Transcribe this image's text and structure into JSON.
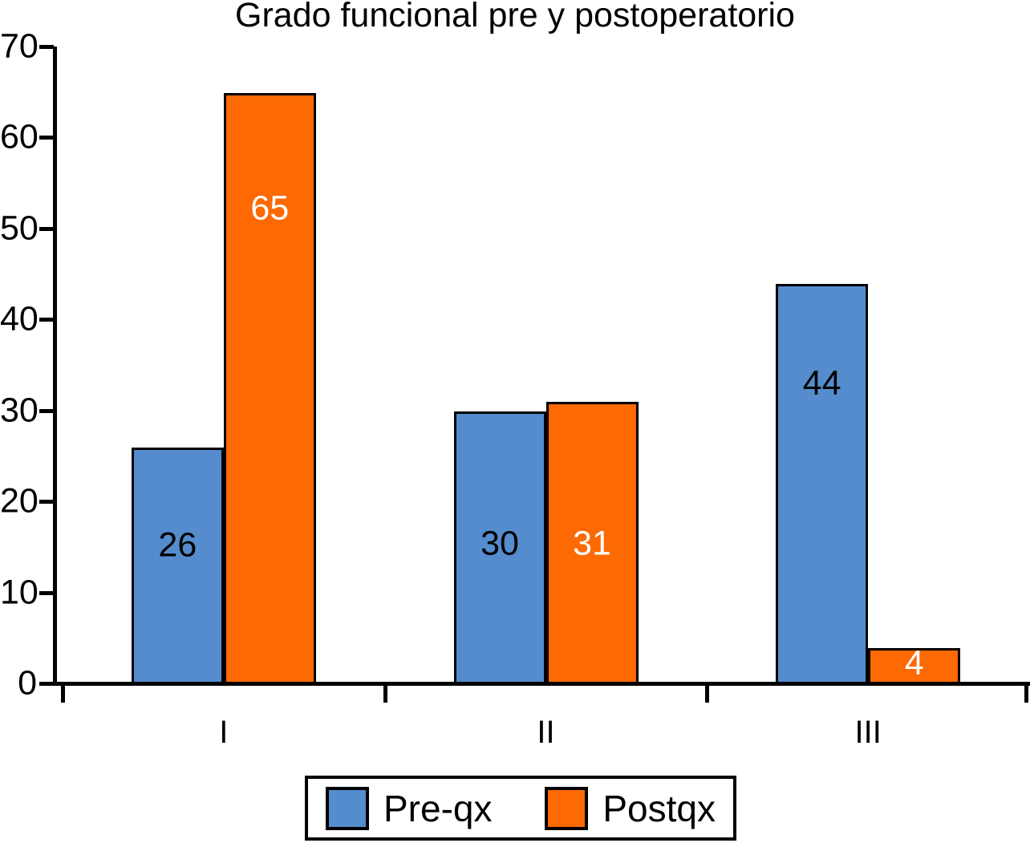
{
  "title": "Grado funcional pre y postoperatorio",
  "legend": {
    "items": [
      {
        "label": "Pre-qx",
        "color": "#548ccd"
      },
      {
        "label": "Postqx",
        "color": "#fd6903"
      }
    ]
  },
  "chart_data": {
    "type": "bar",
    "title": "Grado funcional pre y postoperatorio",
    "xlabel": "",
    "ylabel": "",
    "categories": [
      "I",
      "II",
      "III"
    ],
    "series": [
      {
        "name": "Pre-qx",
        "color": "#548ccd",
        "values": [
          26,
          30,
          44
        ],
        "label_color": "#000000",
        "label_y": [
          15.2,
          15.3,
          33
        ]
      },
      {
        "name": "Postqx",
        "color": "#fd6903",
        "values": [
          65,
          31,
          4
        ],
        "label_color": "#ffffff",
        "label_y": [
          52.2,
          15.3,
          2.2
        ]
      }
    ],
    "bar_value_labels": {
      "Pre-qx": [
        "26",
        "30",
        "44"
      ],
      "Postqx": [
        "65",
        "31",
        "4"
      ]
    },
    "ylim": [
      0,
      70
    ],
    "yticks": [
      0,
      10,
      20,
      30,
      40,
      50,
      60,
      70
    ],
    "grid": false,
    "legend_position": "bottom",
    "background": "#ffffff",
    "axis_color": "#000000"
  }
}
